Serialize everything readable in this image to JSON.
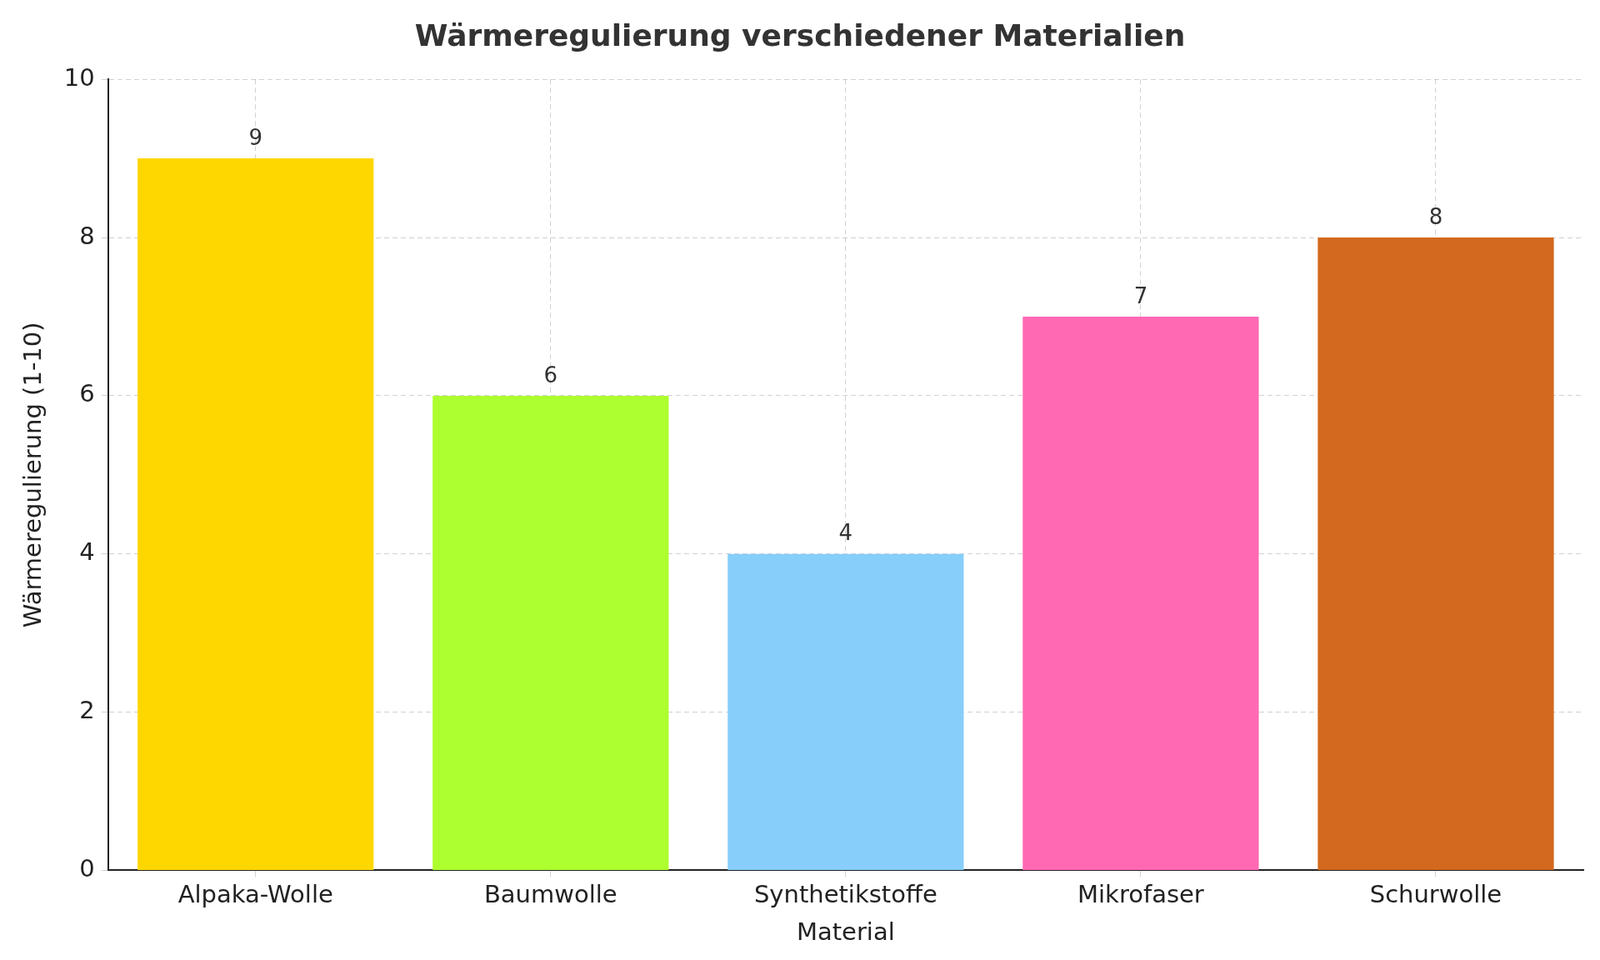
{
  "chart_data": {
    "type": "bar",
    "title": "Wärmeregulierung verschiedener Materialien",
    "x_label": "Material",
    "y_label": "Wärmeregulierung (1-10)",
    "categories": [
      "Alpaka-Wolle",
      "Baumwolle",
      "Synthetikstoffe",
      "Mikrofaser",
      "Schurwolle"
    ],
    "values": [
      9,
      6,
      4,
      7,
      8
    ],
    "colors": [
      "#FFD700",
      "#ADFF2F",
      "#87CEFA",
      "#FF69B4",
      "#D2691E"
    ],
    "ylim": [
      0,
      10
    ],
    "yticks": [
      0,
      2,
      4,
      6,
      8,
      10
    ],
    "grid": true,
    "data_labels": true
  }
}
